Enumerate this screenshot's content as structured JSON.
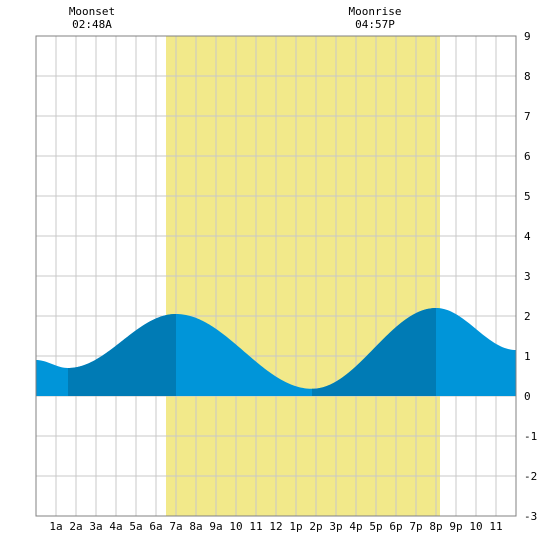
{
  "chart_data": {
    "type": "area",
    "title": "",
    "xlabel": "",
    "ylabel": "",
    "x_range_hours": [
      0,
      24
    ],
    "ylim": [
      -3,
      9
    ],
    "y_ticks": [
      9,
      8,
      7,
      6,
      5,
      4,
      3,
      2,
      1,
      0,
      -1,
      -2,
      -3
    ],
    "x_tick_labels": [
      "1a",
      "2a",
      "3a",
      "4a",
      "5a",
      "6a",
      "7a",
      "8a",
      "9a",
      "10",
      "11",
      "12",
      "1p",
      "2p",
      "3p",
      "4p",
      "5p",
      "6p",
      "7p",
      "8p",
      "9p",
      "10",
      "11"
    ],
    "grid": true,
    "daylight_hours": [
      6.5,
      20.2
    ],
    "daylight_color": "#f2e98a",
    "annotations": [
      {
        "title": "Moonset",
        "time": "02:48A",
        "hour": 2.8
      },
      {
        "title": "Moonrise",
        "time": "04:57P",
        "hour": 16.95
      }
    ],
    "series": [
      {
        "x": [
          0,
          1.6,
          7.0,
          13.8,
          20.0,
          24
        ],
        "y": [
          0.9,
          0.7,
          2.05,
          0.18,
          2.2,
          1.15
        ]
      }
    ],
    "shade_bands": [
      [
        1.6,
        7.0
      ],
      [
        13.8,
        20.0
      ]
    ],
    "colors": {
      "tide": "#0095d9",
      "tide_dark": "#007bb5",
      "grid": "#c8c8c8",
      "frame": "#808080"
    }
  }
}
